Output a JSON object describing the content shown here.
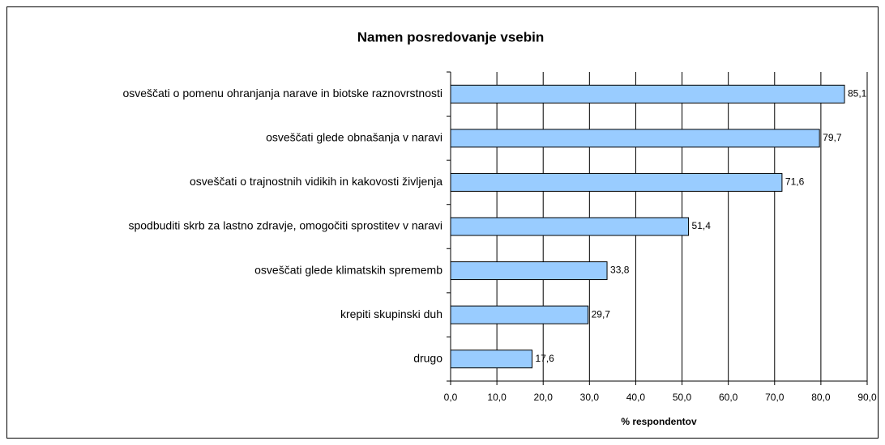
{
  "chart_data": {
    "type": "bar",
    "orientation": "horizontal",
    "title": "Namen posredovanje vsebin",
    "categories": [
      "osveščati o pomenu ohranjanja narave in biotske raznovrstnosti",
      "osveščati glede obnašanja v naravi",
      "osveščati o trajnostnih vidikih in kakovosti življenja",
      "spodbuditi skrb za lastno zdravje, omogočiti sprostitev v naravi",
      "osveščati glede klimatskih sprememb",
      "krepiti skupinski duh",
      "drugo"
    ],
    "values": [
      85.1,
      79.7,
      71.6,
      51.4,
      33.8,
      29.7,
      17.6
    ],
    "value_labels": [
      "85,1",
      "79,7",
      "71,6",
      "51,4",
      "33,8",
      "29,7",
      "17,6"
    ],
    "color": "#99ccff",
    "xlabel": "% respondentov",
    "xlim": [
      0,
      90
    ],
    "xticks": [
      {
        "value": 0,
        "label": "0,0"
      },
      {
        "value": 10,
        "label": "10,0"
      },
      {
        "value": 20,
        "label": "20,0"
      },
      {
        "value": 30,
        "label": "30,0"
      },
      {
        "value": 40,
        "label": "40,0"
      },
      {
        "value": 50,
        "label": "50,0"
      },
      {
        "value": 60,
        "label": "60,0"
      },
      {
        "value": 70,
        "label": "70,0"
      },
      {
        "value": 80,
        "label": "80,0"
      },
      {
        "value": 90,
        "label": "90,0"
      }
    ],
    "grid": true
  }
}
